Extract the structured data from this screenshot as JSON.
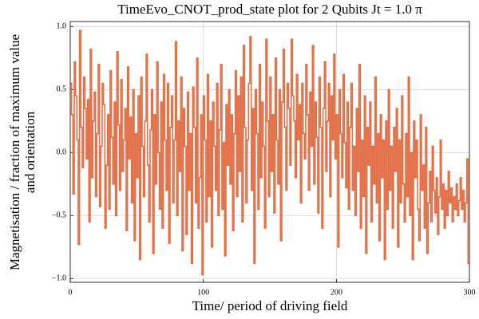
{
  "chart_data": {
    "type": "step",
    "title": "TimeEvo_CNOT_prod_state plot for 2 Qubits Jt = 1.0 π",
    "x_label": "Time/ period of driving field",
    "y_label": [
      "Magnetisation / fraction of maximum value",
      "and orientation"
    ],
    "xlim": [
      0,
      300
    ],
    "ylim": [
      -1.03,
      1.04
    ],
    "xticks": [
      0,
      100,
      200,
      300
    ],
    "yticks": [
      {
        "value": -1.0,
        "label": "−1.0"
      },
      {
        "value": -0.5,
        "label": "−0.5"
      },
      {
        "value": 0.0,
        "label": "0.0"
      },
      {
        "value": 0.5,
        "label": "0.5"
      },
      {
        "value": 1.0,
        "label": "1.0"
      }
    ],
    "grid": true,
    "color": "#e26f46",
    "x": [
      0,
      1,
      2,
      3,
      4,
      5,
      6,
      7,
      8,
      9,
      10,
      11,
      12,
      13,
      14,
      15,
      16,
      17,
      18,
      19,
      20,
      21,
      22,
      23,
      24,
      25,
      26,
      27,
      28,
      29,
      30,
      31,
      32,
      33,
      34,
      35,
      36,
      37,
      38,
      39,
      40,
      41,
      42,
      43,
      44,
      45,
      46,
      47,
      48,
      49,
      50,
      51,
      52,
      53,
      54,
      55,
      56,
      57,
      58,
      59,
      60,
      61,
      62,
      63,
      64,
      65,
      66,
      67,
      68,
      69,
      70,
      71,
      72,
      73,
      74,
      75,
      76,
      77,
      78,
      79,
      80,
      81,
      82,
      83,
      84,
      85,
      86,
      87,
      88,
      89,
      90,
      91,
      92,
      93,
      94,
      95,
      96,
      97,
      98,
      99,
      100,
      101,
      102,
      103,
      104,
      105,
      106,
      107,
      108,
      109,
      110,
      111,
      112,
      113,
      114,
      115,
      116,
      117,
      118,
      119,
      120,
      121,
      122,
      123,
      124,
      125,
      126,
      127,
      128,
      129,
      130,
      131,
      132,
      133,
      134,
      135,
      136,
      137,
      138,
      139,
      140,
      141,
      142,
      143,
      144,
      145,
      146,
      147,
      148,
      149,
      150,
      151,
      152,
      153,
      154,
      155,
      156,
      157,
      158,
      159,
      160,
      161,
      162,
      163,
      164,
      165,
      166,
      167,
      168,
      169,
      170,
      171,
      172,
      173,
      174,
      175,
      176,
      177,
      178,
      179,
      180,
      181,
      182,
      183,
      184,
      185,
      186,
      187,
      188,
      189,
      190,
      191,
      192,
      193,
      194,
      195,
      196,
      197,
      198,
      199,
      200,
      201,
      202,
      203,
      204,
      205,
      206,
      207,
      208,
      209,
      210,
      211,
      212,
      213,
      214,
      215,
      216,
      217,
      218,
      219,
      220,
      221,
      222,
      223,
      224,
      225,
      226,
      227,
      228,
      229,
      230,
      231,
      232,
      233,
      234,
      235,
      236,
      237,
      238,
      239,
      240,
      241,
      242,
      243,
      244,
      245,
      246,
      247,
      248,
      249,
      250,
      251,
      252,
      253,
      254,
      255,
      256,
      257,
      258,
      259,
      260,
      261,
      262,
      263,
      264,
      265,
      266,
      267,
      268,
      269,
      270,
      271,
      272,
      273,
      274,
      275,
      276,
      277,
      278,
      279,
      280,
      281,
      282,
      283,
      284,
      285,
      286,
      287,
      288,
      289,
      290,
      291,
      292,
      293,
      294,
      295,
      296,
      297,
      298,
      299
    ],
    "values": [
      0.55,
      0.3,
      -0.33,
      0.72,
      0.45,
      0.1,
      -0.73,
      0.97,
      0.2,
      -0.12,
      0.6,
      0.35,
      -0.05,
      0.42,
      -0.55,
      0.82,
      -0.2,
      0.25,
      0.48,
      -0.35,
      0.15,
      0.7,
      -0.43,
      0.05,
      0.55,
      0.38,
      -0.6,
      -0.1,
      0.3,
      -0.45,
      0.65,
      0.12,
      -0.25,
      0.4,
      -0.5,
      0.8,
      0.22,
      -0.3,
      0.58,
      -0.15,
      0.1,
      0.35,
      -0.62,
      0.68,
      -0.05,
      0.28,
      -0.4,
      0.5,
      -0.7,
      0.15,
      -0.2,
      0.45,
      -0.85,
      0.6,
      0.05,
      -0.35,
      0.25,
      0.78,
      -0.1,
      -0.55,
      0.18,
      0.5,
      -0.8,
      0.3,
      -0.25,
      0.72,
      0.0,
      -0.45,
      0.4,
      -0.6,
      0.62,
      0.1,
      -0.3,
      0.55,
      -0.72,
      0.2,
      0.45,
      -0.4,
      0.1,
      0.88,
      -0.5,
      0.25,
      -0.15,
      0.6,
      -0.78,
      0.35,
      0.05,
      -0.65,
      0.48,
      -0.3,
      0.15,
      -0.88,
      0.52,
      0.2,
      -0.4,
      0.75,
      -0.6,
      -0.2,
      0.3,
      -0.97,
      0.45,
      0.1,
      -0.55,
      0.62,
      -0.35,
      0.25,
      -0.75,
      0.4,
      0.05,
      -0.3,
      0.55,
      -0.5,
      0.18,
      0.7,
      -0.45,
      0.08,
      -0.82,
      0.38,
      -0.1,
      0.5,
      -0.25,
      0.3,
      -0.62,
      0.15,
      0.65,
      -0.35,
      0.45,
      -0.15,
      0.6,
      -0.55,
      0.85,
      0.2,
      -0.4,
      0.1,
      0.55,
      0.92,
      -0.3,
      0.35,
      -0.88,
      0.5,
      0.15,
      -0.45,
      0.7,
      -0.2,
      0.4,
      0.05,
      -0.6,
      0.9,
      0.25,
      -0.35,
      0.6,
      -0.15,
      0.3,
      -0.48,
      0.75,
      0.1,
      -0.25,
      0.5,
      -0.7,
      0.4,
      0.82,
      0.2,
      -0.3,
      0.55,
      0.35,
      -0.1,
      0.9,
      0.45,
      0.25,
      -0.2,
      0.62,
      0.1,
      0.38,
      -0.4,
      0.55,
      0.15,
      -0.05,
      0.7,
      0.3,
      -0.3,
      0.48,
      0.05,
      0.85,
      -0.25,
      0.4,
      0.12,
      -0.48,
      0.6,
      0.2,
      -0.6,
      0.35,
      0.72,
      -0.15,
      0.25,
      0.55,
      -0.35,
      0.45,
      0.1,
      0.78,
      -0.05,
      0.3,
      -0.75,
      0.5,
      0.15,
      -0.2,
      0.62,
      0.08,
      -0.28,
      0.4,
      -0.45,
      0.2,
      0.55,
      -0.3,
      0.05,
      -0.5,
      0.35,
      -0.15,
      0.7,
      -0.6,
      0.1,
      -0.35,
      0.45,
      -0.8,
      0.2,
      -0.1,
      0.4,
      -0.55,
      0.05,
      -0.25,
      0.6,
      -0.4,
      0.15,
      -0.7,
      0.3,
      -0.2,
      0.1,
      -0.85,
      0.25,
      -0.45,
      0.5,
      -0.3,
      0.05,
      -0.6,
      0.2,
      -0.15,
      0.35,
      -0.75,
      0.1,
      -0.4,
      0.45,
      -0.25,
      -0.55,
      0.15,
      -0.35,
      0.6,
      -0.5,
      0.0,
      -0.85,
      0.25,
      -0.2,
      0.1,
      -0.45,
      -0.7,
      0.3,
      -0.3,
      -0.1,
      -0.6,
      0.2,
      -0.8,
      -0.4,
      -0.15,
      -0.55,
      0.05,
      -0.3,
      -0.48,
      -0.2,
      -0.65,
      -0.35,
      0.1,
      -0.45,
      -0.25,
      -0.6,
      -0.3,
      -0.5,
      -0.15,
      -0.4,
      -0.28,
      -0.55,
      -0.35,
      -0.45,
      -0.25,
      -0.5,
      -0.38,
      -0.2,
      -0.45,
      -0.3,
      -0.55,
      -0.4,
      -0.05,
      -0.88
    ]
  }
}
